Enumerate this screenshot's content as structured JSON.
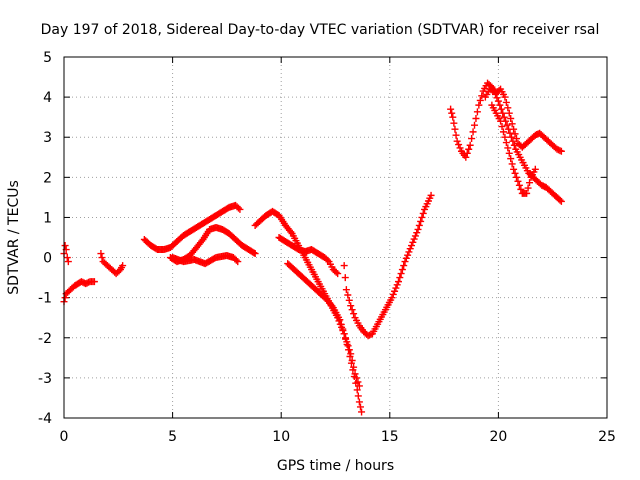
{
  "chart_data": {
    "type": "scatter",
    "title": "Day 197 of 2018, Sidereal Day-to-day VTEC variation (SDTVAR) for receiver rsal",
    "xlabel": "GPS time / hours",
    "ylabel": "SDTVAR / TECUs",
    "xlim": [
      0,
      25
    ],
    "ylim": [
      -4,
      5
    ],
    "xticks": [
      0,
      5,
      10,
      15,
      20,
      25
    ],
    "yticks": [
      -4,
      -3,
      -2,
      -1,
      0,
      1,
      2,
      3,
      4,
      5
    ],
    "grid": true,
    "marker": "+",
    "color": "#ff0000",
    "series": [
      {
        "x": [
          0.0,
          0.05,
          0.1,
          0.15,
          0.2
        ],
        "y": [
          0.1,
          0.3,
          0.2,
          0.0,
          -0.1
        ]
      },
      {
        "x": [
          0.0,
          0.1,
          0.3,
          0.5,
          0.8,
          1.0,
          1.2,
          1.4
        ],
        "y": [
          -1.1,
          -0.9,
          -0.8,
          -0.7,
          -0.6,
          -0.65,
          -0.6,
          -0.6
        ]
      },
      {
        "x": [
          1.7,
          1.8,
          2.0,
          2.2,
          2.4,
          2.6,
          2.7
        ],
        "y": [
          0.1,
          -0.1,
          -0.2,
          -0.3,
          -0.4,
          -0.3,
          -0.2
        ]
      },
      {
        "x": [
          3.7,
          4.0,
          4.3,
          4.6,
          4.9,
          5.2,
          5.5,
          5.8,
          6.1,
          6.4,
          6.7,
          7.0,
          7.3,
          7.6,
          7.9,
          8.1
        ],
        "y": [
          0.45,
          0.3,
          0.2,
          0.2,
          0.25,
          0.4,
          0.55,
          0.65,
          0.75,
          0.85,
          0.95,
          1.05,
          1.15,
          1.25,
          1.3,
          1.2
        ]
      },
      {
        "x": [
          4.9,
          5.2,
          5.5,
          5.8,
          6.1,
          6.4,
          6.7,
          7.0,
          7.3,
          7.6,
          7.9,
          8.2,
          8.5,
          8.8
        ],
        "y": [
          0.0,
          -0.1,
          -0.05,
          0.05,
          0.25,
          0.45,
          0.7,
          0.75,
          0.7,
          0.6,
          0.45,
          0.3,
          0.2,
          0.1
        ]
      },
      {
        "x": [
          5.0,
          5.5,
          6.0,
          6.5,
          7.0,
          7.5,
          7.8,
          8.0
        ],
        "y": [
          0.0,
          -0.1,
          -0.05,
          -0.15,
          0.0,
          0.05,
          0.0,
          -0.1
        ]
      },
      {
        "x": [
          8.8,
          9.0,
          9.3,
          9.6,
          9.9,
          10.2,
          10.5,
          10.8,
          11.1,
          11.4,
          11.7,
          12.0,
          12.3,
          12.6,
          12.9,
          13.2,
          13.4,
          13.6
        ],
        "y": [
          0.8,
          0.9,
          1.05,
          1.15,
          1.05,
          0.8,
          0.6,
          0.3,
          0.0,
          -0.3,
          -0.6,
          -0.9,
          -1.2,
          -1.5,
          -1.9,
          -2.4,
          -2.9,
          -3.2
        ]
      },
      {
        "x": [
          9.9,
          10.2,
          10.5,
          10.8,
          11.1,
          11.4,
          11.7,
          12.0,
          12.2,
          12.4,
          12.6
        ],
        "y": [
          0.5,
          0.4,
          0.3,
          0.2,
          0.15,
          0.2,
          0.1,
          0.0,
          -0.1,
          -0.3,
          -0.4
        ]
      },
      {
        "x": [
          10.3,
          10.6,
          10.9,
          11.2,
          11.5,
          11.8,
          12.1,
          12.4,
          12.7,
          12.9,
          13.1,
          13.3,
          13.5,
          13.6,
          13.7
        ],
        "y": [
          -0.15,
          -0.3,
          -0.45,
          -0.6,
          -0.75,
          -0.9,
          -1.05,
          -1.25,
          -1.55,
          -1.9,
          -2.3,
          -2.8,
          -3.3,
          -3.6,
          -3.85
        ]
      },
      {
        "x": [
          12.9,
          13.0,
          13.2,
          13.4,
          13.6,
          13.8,
          14.0,
          14.2,
          14.5,
          14.8,
          15.1,
          15.4,
          15.7,
          16.0,
          16.3,
          16.6,
          16.9
        ],
        "y": [
          -0.2,
          -0.8,
          -1.2,
          -1.5,
          -1.7,
          -1.85,
          -1.95,
          -1.9,
          -1.6,
          -1.3,
          -1.0,
          -0.6,
          -0.1,
          0.3,
          0.7,
          1.2,
          1.55
        ]
      },
      {
        "x": [
          17.8,
          17.9,
          18.0,
          18.1,
          18.3,
          18.5,
          18.7,
          18.9,
          19.1,
          19.3,
          19.5,
          19.7,
          19.9,
          20.1,
          20.3,
          20.5,
          20.7,
          20.9,
          21.1,
          21.3,
          21.5,
          21.7,
          21.9,
          22.1,
          22.3,
          22.5,
          22.7,
          22.9
        ],
        "y": [
          3.7,
          3.5,
          3.2,
          2.9,
          2.65,
          2.5,
          2.8,
          3.3,
          3.8,
          4.15,
          4.35,
          4.25,
          4.1,
          4.2,
          4.0,
          3.6,
          3.2,
          2.85,
          2.75,
          2.85,
          2.95,
          3.05,
          3.1,
          3.0,
          2.9,
          2.8,
          2.7,
          2.65
        ]
      },
      {
        "x": [
          19.4,
          19.6,
          19.8,
          20.0,
          20.2,
          20.4,
          20.6,
          20.8,
          21.0,
          21.2,
          21.4,
          21.6,
          21.8,
          22.0,
          22.2,
          22.4,
          22.6,
          22.9
        ],
        "y": [
          4.0,
          4.2,
          4.15,
          3.9,
          3.6,
          3.3,
          3.0,
          2.7,
          2.5,
          2.3,
          2.1,
          2.0,
          1.9,
          1.8,
          1.75,
          1.65,
          1.55,
          1.4
        ]
      },
      {
        "x": [
          19.7,
          19.9,
          20.1,
          20.3,
          20.5,
          20.7,
          20.9,
          21.1,
          21.3,
          21.5,
          21.7
        ],
        "y": [
          3.8,
          3.6,
          3.4,
          3.0,
          2.6,
          2.2,
          1.9,
          1.6,
          1.6,
          2.0,
          2.2
        ]
      }
    ]
  }
}
